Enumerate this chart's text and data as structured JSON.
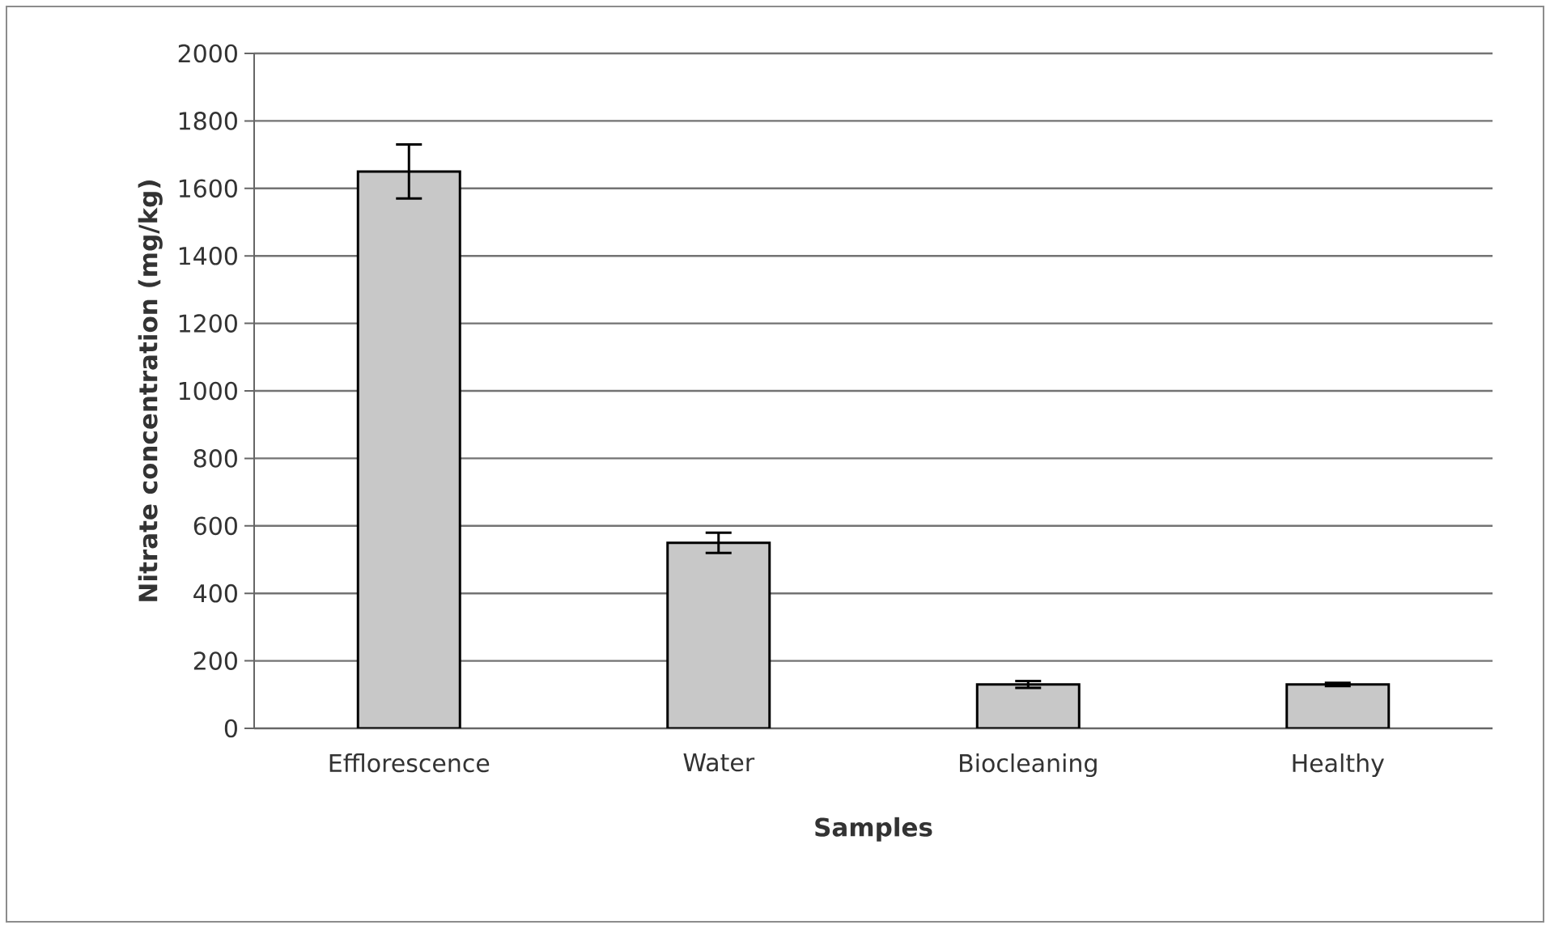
{
  "chart_data": {
    "type": "bar",
    "xlabel": "Samples",
    "ylabel": "Nitrate concentration  (mg/kg)",
    "categories": [
      "Efflorescence",
      "Water",
      "Biocleaning",
      "Healthy"
    ],
    "values": [
      1650,
      550,
      130,
      130
    ],
    "errors": [
      80,
      30,
      10,
      5
    ],
    "color": "#c8c8c8",
    "ylim": [
      0,
      2000
    ],
    "yticks": [
      0,
      200,
      400,
      600,
      800,
      1000,
      1200,
      1400,
      1600,
      1800,
      2000
    ],
    "grid": "y"
  }
}
